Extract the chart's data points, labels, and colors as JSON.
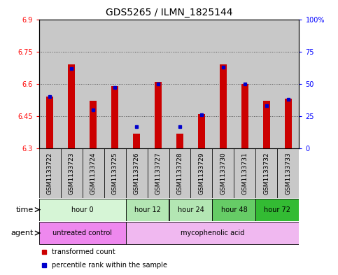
{
  "title": "GDS5265 / ILMN_1825144",
  "samples": [
    "GSM1133722",
    "GSM1133723",
    "GSM1133724",
    "GSM1133725",
    "GSM1133726",
    "GSM1133727",
    "GSM1133728",
    "GSM1133729",
    "GSM1133730",
    "GSM1133731",
    "GSM1133732",
    "GSM1133733"
  ],
  "red_values": [
    6.54,
    6.69,
    6.52,
    6.59,
    6.37,
    6.61,
    6.37,
    6.46,
    6.69,
    6.6,
    6.52,
    6.53
  ],
  "blue_values": [
    40,
    62,
    30,
    47,
    17,
    50,
    17,
    26,
    63,
    50,
    33,
    38
  ],
  "ylim_left": [
    6.3,
    6.9
  ],
  "ylim_right": [
    0,
    100
  ],
  "yticks_left": [
    6.3,
    6.45,
    6.6,
    6.75,
    6.9
  ],
  "ytick_labels_left": [
    "6.3",
    "6.45",
    "6.6",
    "6.75",
    "6.9"
  ],
  "yticks_right": [
    0,
    25,
    50,
    75,
    100
  ],
  "ytick_labels_right": [
    "0",
    "25",
    "50",
    "75",
    "100%"
  ],
  "bar_bottom": 6.3,
  "time_groups": [
    {
      "label": "hour 0",
      "start": 0,
      "end": 3,
      "color": "#d6f5d6"
    },
    {
      "label": "hour 12",
      "start": 4,
      "end": 5,
      "color": "#b3e6b3"
    },
    {
      "label": "hour 24",
      "start": 6,
      "end": 7,
      "color": "#b3e6b3"
    },
    {
      "label": "hour 48",
      "start": 8,
      "end": 9,
      "color": "#66cc66"
    },
    {
      "label": "hour 72",
      "start": 10,
      "end": 11,
      "color": "#33bb33"
    }
  ],
  "agent_groups": [
    {
      "label": "untreated control",
      "start": 0,
      "end": 3,
      "color": "#ee88ee"
    },
    {
      "label": "mycophenolic acid",
      "start": 4,
      "end": 11,
      "color": "#f0b8f0"
    }
  ],
  "legend_items": [
    {
      "color": "#cc0000",
      "label": "transformed count"
    },
    {
      "color": "#0000cc",
      "label": "percentile rank within the sample"
    }
  ],
  "red_color": "#cc0000",
  "blue_color": "#0000cc",
  "bar_width": 0.35,
  "cell_color": "#c8c8c8",
  "plot_bg": "#ffffff",
  "dotted_line_color": "#555555",
  "title_fontsize": 10,
  "tick_fontsize": 7,
  "label_fontsize": 8,
  "gsm_fontsize": 6.5
}
